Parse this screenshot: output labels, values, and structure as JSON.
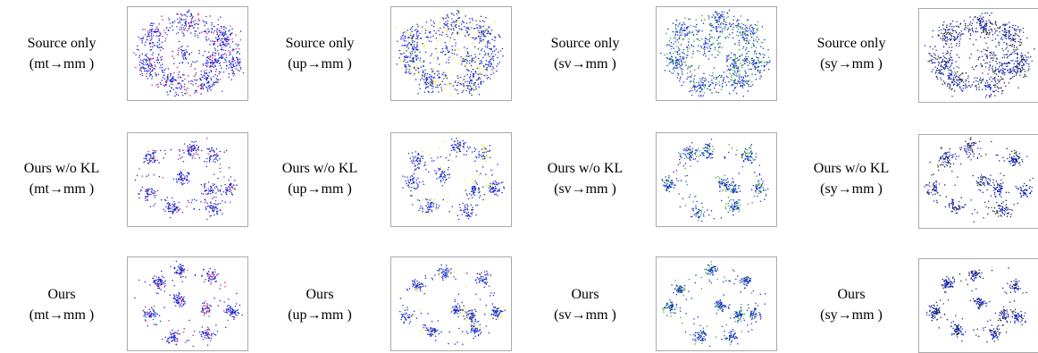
{
  "figure": {
    "row_labels": [
      "Source only",
      "Ours w/o KL",
      "Ours"
    ],
    "columns": [
      {
        "label": "(mt→mm )",
        "source_color": "#d0186a",
        "source": "mt"
      },
      {
        "label": "(up→mm )",
        "source_color": "#f2e600",
        "source": "up"
      },
      {
        "label": "(sv→mm )",
        "source_color": "#2aa632",
        "source": "sv"
      },
      {
        "label": "(sy→mm )",
        "source_color": "#202020",
        "source": "sy"
      }
    ],
    "target_color": "#1428d8"
  },
  "cells": [
    [
      {
        "title": "Source only",
        "subtitle": "(mt→mm )"
      },
      {
        "title": "Source only",
        "subtitle": "(up→mm )"
      },
      {
        "title": "Source only",
        "subtitle": "(sv→mm )"
      },
      {
        "title": "Source only",
        "subtitle": "(sy→mm )"
      }
    ],
    [
      {
        "title": "Ours w/o KL",
        "subtitle": "(mt→mm )"
      },
      {
        "title": "Ours w/o KL",
        "subtitle": "(up→mm )"
      },
      {
        "title": "Ours w/o KL",
        "subtitle": "(sv→mm )"
      },
      {
        "title": "Ours w/o KL",
        "subtitle": "(sy→mm )"
      }
    ],
    [
      {
        "title": "Ours",
        "subtitle": "(mt→mm )"
      },
      {
        "title": "Ours",
        "subtitle": "(up→mm )"
      },
      {
        "title": "Ours",
        "subtitle": "(sv→mm )"
      },
      {
        "title": "Ours",
        "subtitle": "(sy→mm )"
      }
    ]
  ]
}
